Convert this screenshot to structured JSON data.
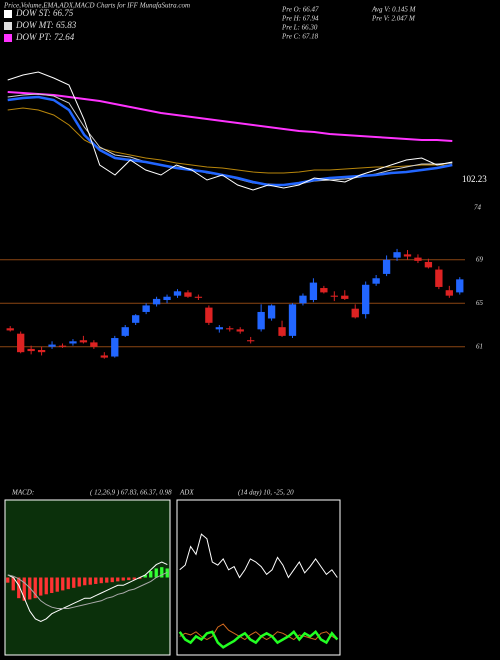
{
  "header": {
    "title": "Price,Volume,EMA,ADX,MACD Charts for IFF MunafaSutra.com",
    "legend": [
      {
        "label": "DOW ST: 66.75",
        "color": "#ffffff"
      },
      {
        "label": "DOW MT: 65.83",
        "color": "#dddddd"
      },
      {
        "label": "DOW PT: 72.64",
        "color": "#ff33ff"
      }
    ],
    "info": [
      "Pre  O: 66.47",
      "Pre  H: 67.94",
      "Pre  L: 66.30",
      "Pre  C: 67.18",
      "Avg  V: 0.145 M",
      "Pre  V: 2.047 M"
    ]
  },
  "chart_data": [
    {
      "type": "line",
      "ylim": [
        0,
        147
      ],
      "annotations": [
        "102.23",
        "74"
      ],
      "series": [
        {
          "color": "#ff33ff",
          "width": 2,
          "values": [
            115,
            114,
            113,
            112,
            110,
            108,
            106,
            103,
            100,
            97,
            94,
            92,
            90,
            88,
            86,
            84,
            82,
            80,
            78,
            76,
            75,
            73,
            72,
            71,
            70,
            69,
            68,
            67,
            67,
            66
          ]
        },
        {
          "color": "#b8860b",
          "width": 1,
          "values": [
            97,
            99,
            97,
            92,
            82,
            67,
            59,
            55,
            52,
            49,
            47,
            44,
            42,
            40,
            39,
            37,
            35,
            34,
            34,
            35,
            37,
            37,
            38,
            39,
            40,
            40,
            41,
            42,
            42,
            42
          ]
        },
        {
          "color": "#cccccc",
          "width": 1,
          "values": [
            110,
            112,
            113,
            111,
            104,
            80,
            60,
            52,
            50,
            45,
            42,
            40,
            38,
            34,
            32,
            28,
            24,
            23,
            22,
            23,
            26,
            27,
            28,
            30,
            33,
            37,
            40,
            43,
            43,
            44
          ]
        },
        {
          "color": "#2266ff",
          "width": 2.5,
          "values": [
            107,
            109,
            110,
            107,
            97,
            72,
            57,
            49,
            47,
            45,
            42,
            39,
            37,
            35,
            32,
            29,
            25,
            22,
            22,
            24,
            27,
            29,
            30,
            31,
            32,
            34,
            35,
            37,
            39,
            42
          ]
        },
        {
          "color": "#ffffff",
          "width": 1,
          "values": [
            127,
            132,
            135,
            129,
            122,
            87,
            42,
            32,
            47,
            37,
            32,
            42,
            37,
            27,
            32,
            22,
            17,
            22,
            19,
            22,
            29,
            27,
            25,
            32,
            37,
            42,
            47,
            49,
            42,
            45
          ]
        }
      ]
    },
    {
      "type": "candlestick",
      "ylim": [
        58.4,
        72.2
      ],
      "yticks": [
        61,
        65,
        69
      ],
      "up_color": "#2266ff",
      "down_color": "#dd2222",
      "grid_color": "#8b4513",
      "open": [
        62.7,
        62.2,
        60.8,
        60.7,
        61.0,
        61.1,
        61.3,
        61.6,
        61.4,
        60.2,
        60.1,
        62.0,
        63.2,
        64.2,
        64.9,
        65.3,
        65.7,
        66.0,
        65.6,
        64.6,
        62.6,
        62.7,
        62.6,
        61.6,
        62.6,
        63.6,
        62.8,
        62.0,
        65.0,
        65.3,
        66.4,
        65.7,
        65.7,
        64.5,
        64.0,
        66.8,
        67.7,
        69.2,
        69.5,
        69.2,
        68.8,
        68.1,
        66.2,
        66.0
      ],
      "high": [
        62.9,
        62.4,
        61.1,
        61.0,
        61.5,
        61.3,
        61.7,
        62.0,
        61.6,
        60.5,
        62.0,
        63.0,
        64.0,
        65.0,
        65.6,
        65.8,
        66.3,
        66.2,
        65.8,
        64.8,
        63.0,
        62.9,
        62.8,
        61.9,
        64.9,
        64.9,
        63.4,
        65.0,
        65.9,
        67.3,
        66.6,
        66.1,
        66.2,
        64.9,
        67.0,
        67.6,
        69.4,
        70.0,
        69.9,
        69.5,
        69.1,
        68.4,
        66.6,
        67.4
      ],
      "low": [
        62.4,
        60.4,
        60.3,
        60.2,
        60.8,
        60.9,
        61.1,
        61.3,
        60.8,
        59.9,
        60.0,
        61.9,
        63.0,
        64.0,
        64.7,
        65.0,
        65.5,
        65.5,
        65.3,
        63.0,
        62.3,
        62.4,
        62.2,
        61.3,
        62.4,
        63.4,
        61.9,
        61.8,
        64.8,
        65.1,
        65.9,
        65.2,
        65.3,
        63.6,
        63.6,
        66.6,
        67.5,
        68.9,
        69.0,
        68.7,
        68.2,
        66.3,
        65.5,
        65.8
      ],
      "close": [
        62.5,
        60.5,
        60.6,
        60.5,
        61.2,
        61.0,
        61.5,
        61.4,
        61.0,
        60.0,
        61.8,
        62.8,
        63.9,
        64.8,
        65.4,
        65.6,
        66.1,
        65.6,
        65.5,
        63.2,
        62.8,
        62.6,
        62.4,
        61.5,
        64.2,
        64.8,
        62.0,
        64.9,
        65.7,
        66.9,
        66.0,
        65.6,
        65.4,
        63.7,
        66.7,
        67.3,
        69.0,
        69.7,
        69.3,
        68.9,
        68.3,
        66.5,
        65.7,
        67.2
      ]
    },
    {
      "type": "macd",
      "title": "MACD:",
      "params": "( 12,26,9 ) 67.83, 66.37, 0.98",
      "ylim": [
        -3,
        3
      ],
      "background": "#0b300b",
      "series": [
        {
          "color": "#ffffff",
          "values": [
            0.1,
            0.0,
            -0.3,
            -0.8,
            -1.3,
            -1.6,
            -1.7,
            -1.6,
            -1.4,
            -1.3,
            -1.2,
            -1.1,
            -1.0,
            -0.9,
            -0.8,
            -0.8,
            -0.7,
            -0.6,
            -0.5,
            -0.4,
            -0.3,
            -0.3,
            -0.2,
            -0.1,
            0.0,
            0.1,
            0.3,
            0.5,
            0.6,
            0.5
          ]
        },
        {
          "color": "#aaaaaa",
          "values": [
            0.1,
            0.05,
            -0.05,
            -0.2,
            -0.4,
            -0.65,
            -0.9,
            -1.05,
            -1.15,
            -1.2,
            -1.2,
            -1.2,
            -1.15,
            -1.1,
            -1.05,
            -1.0,
            -0.95,
            -0.9,
            -0.8,
            -0.75,
            -0.65,
            -0.6,
            -0.5,
            -0.45,
            -0.35,
            -0.25,
            -0.15,
            0.0,
            0.1,
            0.2
          ]
        }
      ],
      "histogram": [
        -0.2,
        -0.5,
        -0.8,
        -0.9,
        -0.85,
        -0.8,
        -0.7,
        -0.65,
        -0.6,
        -0.55,
        -0.5,
        -0.45,
        -0.4,
        -0.35,
        -0.3,
        -0.28,
        -0.25,
        -0.22,
        -0.2,
        -0.18,
        -0.15,
        -0.12,
        -0.1,
        -0.08,
        -0.05,
        0.1,
        0.25,
        0.35,
        0.4,
        0.35
      ],
      "neg_color": "#ff3333",
      "pos_color": "#33ff33"
    },
    {
      "type": "adx",
      "title": "ADX",
      "params": "(14  day) 10, -25, 20",
      "ylim": [
        0,
        100
      ],
      "background": "#000000",
      "series": [
        {
          "color": "#ffffff",
          "values": [
            55,
            58,
            70,
            65,
            78,
            75,
            60,
            58,
            62,
            55,
            57,
            50,
            55,
            62,
            60,
            57,
            52,
            55,
            63,
            58,
            50,
            55,
            60,
            53,
            57,
            62,
            57,
            52,
            55,
            50
          ]
        },
        {
          "color": "#d2691e",
          "values": [
            12,
            14,
            13,
            15,
            12,
            10,
            12,
            18,
            20,
            16,
            14,
            12,
            10,
            13,
            15,
            12,
            10,
            12,
            15,
            14,
            12,
            10,
            13,
            12,
            11,
            10,
            14,
            15,
            12,
            10
          ]
        },
        {
          "color": "#22ff22",
          "values": [
            15,
            10,
            8,
            12,
            10,
            14,
            15,
            8,
            5,
            7,
            9,
            12,
            14,
            10,
            8,
            12,
            14,
            12,
            8,
            10,
            12,
            15,
            10,
            14,
            12,
            15,
            10,
            8,
            14,
            10
          ]
        }
      ]
    }
  ]
}
